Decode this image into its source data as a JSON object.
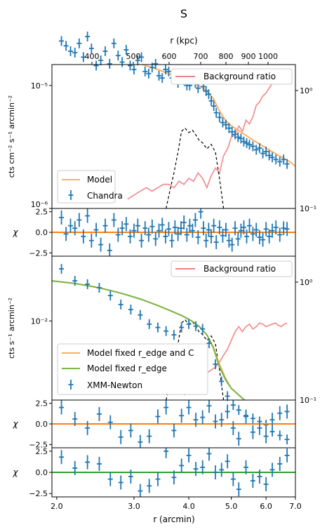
{
  "chart_data": {
    "type": "scatter",
    "title": "S",
    "top_axis": {
      "label": "r (kpc)",
      "ticks": [
        "400",
        "500",
        "600",
        "700",
        "800",
        "900",
        "1000"
      ]
    },
    "x_axis": {
      "label": "r (arcmin)",
      "scale": "log",
      "range": [
        1.95,
        7.0
      ],
      "ticks": [
        "2.0",
        "3.0",
        "4.0",
        "5.0",
        "6.0",
        "7.0"
      ]
    },
    "chandra_panel": {
      "ylabel": "cts cm$^{-2}$ s$^{-1}$ arcmin$^{-2}$",
      "ylabel_text": "cts cm⁻² s⁻¹ arcmin⁻²",
      "y_scale": "log",
      "y_ticks": [
        "10⁻⁶",
        "10⁻⁵"
      ],
      "right_ticks": [
        "10⁻¹",
        "10⁰"
      ],
      "legend_top": "Background ratio",
      "legend_bottom": [
        "Model",
        "Chandra"
      ],
      "data_x": [
        2.05,
        2.1,
        2.15,
        2.2,
        2.25,
        2.3,
        2.35,
        2.4,
        2.46,
        2.52,
        2.58,
        2.64,
        2.7,
        2.76,
        2.82,
        2.88,
        2.94,
        3.0,
        3.06,
        3.12,
        3.18,
        3.24,
        3.3,
        3.36,
        3.42,
        3.48,
        3.54,
        3.6,
        3.66,
        3.72,
        3.78,
        3.84,
        3.9,
        3.96,
        4.02,
        4.08,
        4.14,
        4.2,
        4.26,
        4.32,
        4.38,
        4.44,
        4.5,
        4.56,
        4.62,
        4.7,
        4.78,
        4.86,
        4.94,
        5.02,
        5.1,
        5.18,
        5.26,
        5.34,
        5.42,
        5.5,
        5.6,
        5.7,
        5.8,
        5.9,
        6.0,
        6.1,
        6.2,
        6.32,
        6.45,
        6.58,
        6.7
      ],
      "data_y": [
        2.3,
        2.1,
        1.9,
        1.85,
        2.2,
        1.7,
        2.5,
        2.0,
        1.45,
        1.6,
        1.9,
        1.5,
        2.2,
        1.75,
        1.55,
        1.95,
        1.45,
        1.35,
        1.6,
        1.7,
        1.3,
        1.25,
        1.4,
        1.5,
        1.2,
        1.15,
        1.35,
        1.3,
        1.15,
        1.2,
        1.05,
        1.25,
        1.1,
        1.0,
        1.0,
        1.15,
        1.05,
        0.95,
        1.15,
        0.98,
        0.9,
        0.85,
        0.75,
        0.68,
        0.6,
        0.55,
        0.5,
        0.48,
        0.45,
        0.42,
        0.4,
        0.38,
        0.37,
        0.35,
        0.34,
        0.33,
        0.32,
        0.3,
        0.31,
        0.28,
        0.29,
        0.27,
        0.26,
        0.25,
        0.24,
        0.25,
        0.23
      ],
      "model_x": [
        1.95,
        2.2,
        2.5,
        2.8,
        3.1,
        3.4,
        3.7,
        3.9,
        4.1,
        4.25,
        4.4,
        4.55,
        4.7,
        4.85,
        5.0,
        5.3,
        5.6,
        6.0,
        6.4,
        6.8,
        7.0
      ],
      "model_y": [
        2.0,
        1.9,
        1.78,
        1.65,
        1.5,
        1.35,
        1.2,
        1.12,
        1.05,
        0.98,
        0.9,
        0.78,
        0.62,
        0.52,
        0.47,
        0.41,
        0.36,
        0.31,
        0.27,
        0.24,
        0.22
      ],
      "background_x": [
        2.9,
        3.0,
        3.1,
        3.2,
        3.3,
        3.4,
        3.5,
        3.6,
        3.7,
        3.8,
        3.9,
        4.0,
        4.1,
        4.2,
        4.3,
        4.4,
        4.5,
        4.6,
        4.7,
        4.8,
        4.9,
        5.0,
        5.1,
        5.2,
        5.3,
        5.4,
        5.5,
        5.6,
        5.7,
        5.8,
        5.9,
        6.0,
        6.1,
        6.2,
        6.3,
        6.4,
        6.5,
        6.6,
        6.7
      ],
      "background_y": [
        0.12,
        0.13,
        0.14,
        0.15,
        0.14,
        0.15,
        0.16,
        0.16,
        0.15,
        0.17,
        0.16,
        0.18,
        0.17,
        0.2,
        0.18,
        0.15,
        0.19,
        0.22,
        0.2,
        0.28,
        0.32,
        0.4,
        0.42,
        0.5,
        0.45,
        0.56,
        0.52,
        0.6,
        0.75,
        0.8,
        0.9,
        0.95,
        1.05,
        1.15,
        1.2,
        1.3,
        1.35,
        1.3,
        1.25
      ],
      "profile_x": [
        3.55,
        3.62,
        3.7,
        3.78,
        3.85,
        3.92,
        4.0,
        4.08,
        4.15,
        4.22,
        4.3,
        4.4,
        4.5,
        4.6,
        4.7,
        4.8
      ],
      "profile_y": [
        0.1,
        0.14,
        0.2,
        0.3,
        0.45,
        0.48,
        0.44,
        0.46,
        0.42,
        0.38,
        0.36,
        0.32,
        0.35,
        0.3,
        0.18,
        0.1
      ]
    },
    "chandra_residuals": {
      "ylabel": "χ",
      "y_ticks": [
        "2.5",
        "0.0",
        "−2.5"
      ],
      "values": [
        1.8,
        -0.2,
        0.8,
        0.5,
        1.5,
        -0.5,
        2.0,
        -1.0,
        0.3,
        -1.5,
        0.8,
        -2.2,
        1.5,
        -0.3,
        0.5,
        1.0,
        -0.5,
        0.2,
        0.8,
        -1.0,
        0.5,
        -0.3,
        0.7,
        -0.8,
        0.2,
        0.9,
        -0.5,
        0.4,
        -1.0,
        0.6,
        -0.2,
        0.5,
        1.2,
        -0.3,
        0.8,
        0.2,
        1.5,
        -0.6,
        2.5,
        0.5,
        -1.0,
        0.3,
        -0.5,
        0.8,
        -1.2,
        0.6,
        -0.4,
        0.3,
        -1.0,
        -1.5,
        0.5,
        -0.8,
        0.2,
        0.6,
        -0.5,
        0.8,
        -0.2,
        0.3,
        -0.6,
        -0.9,
        0.4,
        -0.5,
        0.2,
        0.6,
        -0.3,
        0.5,
        0.4
      ]
    },
    "xmm_panel": {
      "ylabel": "cts s$^{-1}$ arcmin$^{-2}$",
      "ylabel_text": "cts s⁻¹ arcmin⁻²",
      "y_scale": "log",
      "y_ticks": [
        "10⁻²"
      ],
      "right_ticks": [
        "10⁻¹",
        "10⁰"
      ],
      "legend_top": "Background ratio",
      "legend_bottom": [
        "Model fixed r_edge and C",
        "Model fixed r_edge",
        "XMM-Newton"
      ],
      "data_x": [
        2.05,
        2.2,
        2.35,
        2.5,
        2.65,
        2.8,
        2.95,
        3.1,
        3.25,
        3.4,
        3.55,
        3.7,
        3.85,
        4.0,
        4.15,
        4.3,
        4.45,
        4.6,
        4.75,
        4.9,
        5.05,
        5.2,
        5.4,
        5.6,
        5.8,
        6.0,
        6.2,
        6.45,
        6.7
      ],
      "data_y": [
        2.3,
        1.9,
        1.8,
        1.7,
        1.5,
        1.3,
        1.2,
        1.1,
        0.95,
        0.9,
        0.85,
        0.8,
        0.9,
        0.95,
        0.92,
        0.88,
        0.7,
        0.5,
        0.38,
        0.3,
        0.26,
        0.24,
        0.22,
        0.21,
        0.2,
        0.19,
        0.17,
        0.16,
        0.15
      ],
      "model_x": [
        1.95,
        2.2,
        2.5,
        2.8,
        3.1,
        3.4,
        3.7,
        3.9,
        4.1,
        4.25,
        4.4,
        4.55,
        4.7,
        4.85,
        5.0,
        5.3,
        5.6,
        6.0,
        6.4,
        6.8,
        7.0
      ],
      "model_orange_y": [
        1.9,
        1.82,
        1.7,
        1.56,
        1.42,
        1.28,
        1.15,
        1.07,
        0.98,
        0.9,
        0.8,
        0.66,
        0.5,
        0.4,
        0.34,
        0.29,
        0.25,
        0.21,
        0.18,
        0.16,
        0.15
      ],
      "model_green_y": [
        1.9,
        1.82,
        1.7,
        1.56,
        1.42,
        1.28,
        1.15,
        1.07,
        0.98,
        0.9,
        0.8,
        0.65,
        0.48,
        0.39,
        0.34,
        0.29,
        0.25,
        0.21,
        0.18,
        0.16,
        0.15
      ],
      "background_x": [
        3.9,
        4.0,
        4.1,
        4.2,
        4.3,
        4.4,
        4.5,
        4.6,
        4.7,
        4.8,
        4.9,
        5.0,
        5.1,
        5.2,
        5.3,
        5.4,
        5.5,
        5.6,
        5.7,
        5.8,
        5.9,
        6.0,
        6.1,
        6.2,
        6.3,
        6.4,
        6.5,
        6.6,
        6.7
      ],
      "background_y": [
        0.11,
        0.12,
        0.13,
        0.14,
        0.16,
        0.17,
        0.18,
        0.19,
        0.21,
        0.24,
        0.27,
        0.32,
        0.38,
        0.42,
        0.38,
        0.42,
        0.44,
        0.4,
        0.42,
        0.45,
        0.44,
        0.42,
        0.43,
        0.44,
        0.45,
        0.43,
        0.42,
        0.44,
        0.45
      ],
      "profile_x": [
        3.55,
        3.62,
        3.7,
        3.78,
        3.85,
        3.92,
        4.0,
        4.08,
        4.15,
        4.22,
        4.3,
        4.4,
        4.5,
        4.6,
        4.7,
        4.8
      ],
      "profile_y": [
        0.1,
        0.14,
        0.2,
        0.3,
        0.45,
        0.48,
        0.44,
        0.46,
        0.42,
        0.38,
        0.36,
        0.32,
        0.35,
        0.3,
        0.18,
        0.1
      ]
    },
    "xmm_residuals_orange": {
      "ylabel": "χ",
      "y_ticks": [
        "2.5",
        "0.0",
        "−2.5"
      ],
      "values": [
        2.0,
        0.6,
        -0.5,
        1.2,
        0.2,
        -1.6,
        -0.8,
        -2.2,
        -1.5,
        0.9,
        2.0,
        -0.8,
        1.0,
        2.0,
        0.5,
        0.8,
        2.2,
        0.3,
        0.5,
        1.5,
        -0.5,
        -1.8,
        0.9,
        -1.0,
        -0.5,
        -1.5,
        0.5,
        1.3,
        1.5
      ]
    },
    "xmm_residuals_green": {
      "ylabel": "χ",
      "y_ticks": [
        "2.5",
        "0.0",
        "−2.5"
      ],
      "values": [
        1.8,
        0.5,
        1.2,
        1.0,
        -0.8,
        -1.2,
        -0.5,
        -2.2,
        -1.6,
        -0.8,
        2.5,
        -0.6,
        0.8,
        2.0,
        0.4,
        0.6,
        2.2,
        0.0,
        0.3,
        1.3,
        -0.8,
        -2.0,
        0.6,
        -1.0,
        -0.5,
        -1.4,
        0.3,
        1.0,
        2.0
      ]
    }
  }
}
